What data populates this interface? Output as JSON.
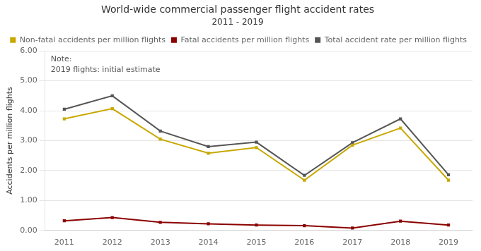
{
  "chart_data": {
    "type": "line",
    "title": "World-wide commercial passenger flight accident rates",
    "subtitle": "2011 - 2019",
    "y_label": "Accidents per million flights",
    "x": [
      2011,
      2012,
      2013,
      2014,
      2015,
      2016,
      2017,
      2018,
      2019
    ],
    "xlim": [
      2010.6,
      2019.5
    ],
    "xticks": [
      2011,
      2012,
      2013,
      2014,
      2015,
      2016,
      2017,
      2018,
      2019
    ],
    "ylim": [
      0,
      6.0
    ],
    "yticks": [
      {
        "value": 0.0,
        "label": "0.00"
      },
      {
        "value": 1.0,
        "label": "1.00"
      },
      {
        "value": 2.0,
        "label": "2.00"
      },
      {
        "value": 3.0,
        "label": "3.00"
      },
      {
        "value": 4.0,
        "label": "4.00"
      },
      {
        "value": 5.0,
        "label": "5.00"
      },
      {
        "value": 6.0,
        "label": "6.00"
      }
    ],
    "series": [
      {
        "name": "Non-fatal accidents per million flights",
        "color": "#C8A800",
        "marker": "square",
        "line_style": "solid",
        "values": [
          3.73,
          4.07,
          3.05,
          2.58,
          2.77,
          1.68,
          2.85,
          3.42,
          1.68
        ]
      },
      {
        "name": "Fatal accidents per million flights",
        "color": "#8B0000",
        "marker": "square",
        "line_style": "solid",
        "values": [
          0.32,
          0.43,
          0.27,
          0.22,
          0.18,
          0.16,
          0.08,
          0.31,
          0.18
        ]
      },
      {
        "name": "Total accident rate per million flights",
        "color": "#555555",
        "marker": "square",
        "line_style": "solid",
        "values": [
          4.05,
          4.5,
          3.32,
          2.8,
          2.95,
          1.84,
          2.93,
          3.73,
          1.86
        ]
      }
    ],
    "annotations": [
      "Note:",
      "2019 flights: initial estimate"
    ],
    "grid": "y",
    "legend": "upper right"
  }
}
